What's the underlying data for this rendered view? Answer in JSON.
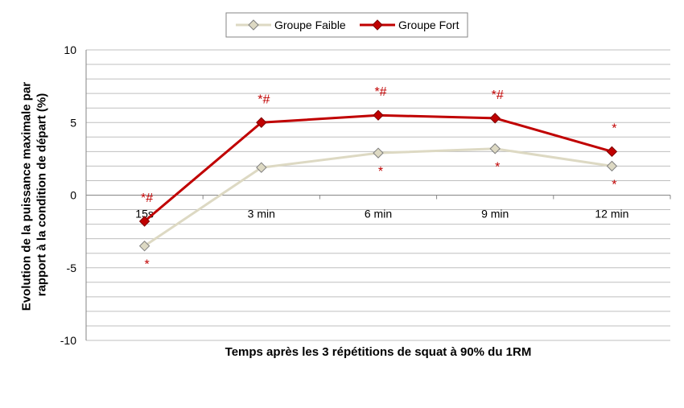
{
  "chart_data": {
    "type": "line",
    "categories": [
      "15s",
      "3 min",
      "6 min",
      "9 min",
      "12 min"
    ],
    "series": [
      {
        "name": "Groupe Faible",
        "values": [
          -3.5,
          1.9,
          2.9,
          3.2,
          2.0
        ],
        "color": "#ddd9c3",
        "marker": "diamond",
        "marker_fill": "#ddd9c3"
      },
      {
        "name": "Groupe Fort",
        "values": [
          -1.8,
          5.0,
          5.5,
          5.3,
          3.0
        ],
        "color": "#c00000",
        "marker": "diamond",
        "marker_fill": "#c00000"
      }
    ],
    "xlabel": "Temps après les 3 répétitions de squat à 90% du 1RM",
    "ylabel": "Evolution de la puissance maximale par rapport à la condition de départ (%)",
    "ylim": [
      -10,
      10
    ],
    "yticks": [
      -10,
      -5,
      0,
      5,
      10
    ],
    "grid": true,
    "legend": "top",
    "annotations": [
      {
        "category": "15s",
        "series": "Groupe Fort",
        "text": "*#",
        "position": "above"
      },
      {
        "category": "15s",
        "series": "Groupe Faible",
        "text": "*",
        "position": "below"
      },
      {
        "category": "3 min",
        "series": "Groupe Fort",
        "text": "*#",
        "position": "above"
      },
      {
        "category": "6 min",
        "series": "Groupe Fort",
        "text": "*#",
        "position": "above"
      },
      {
        "category": "6 min",
        "series": "Groupe Faible",
        "text": "*",
        "position": "below"
      },
      {
        "category": "9 min",
        "series": "Groupe Fort",
        "text": "*#",
        "position": "above"
      },
      {
        "category": "9 min",
        "series": "Groupe Faible",
        "text": "*",
        "position": "below"
      },
      {
        "category": "12 min",
        "series": "Groupe Fort",
        "text": "*",
        "position": "above"
      },
      {
        "category": "12 min",
        "series": "Groupe Faible",
        "text": "*",
        "position": "below"
      }
    ]
  }
}
